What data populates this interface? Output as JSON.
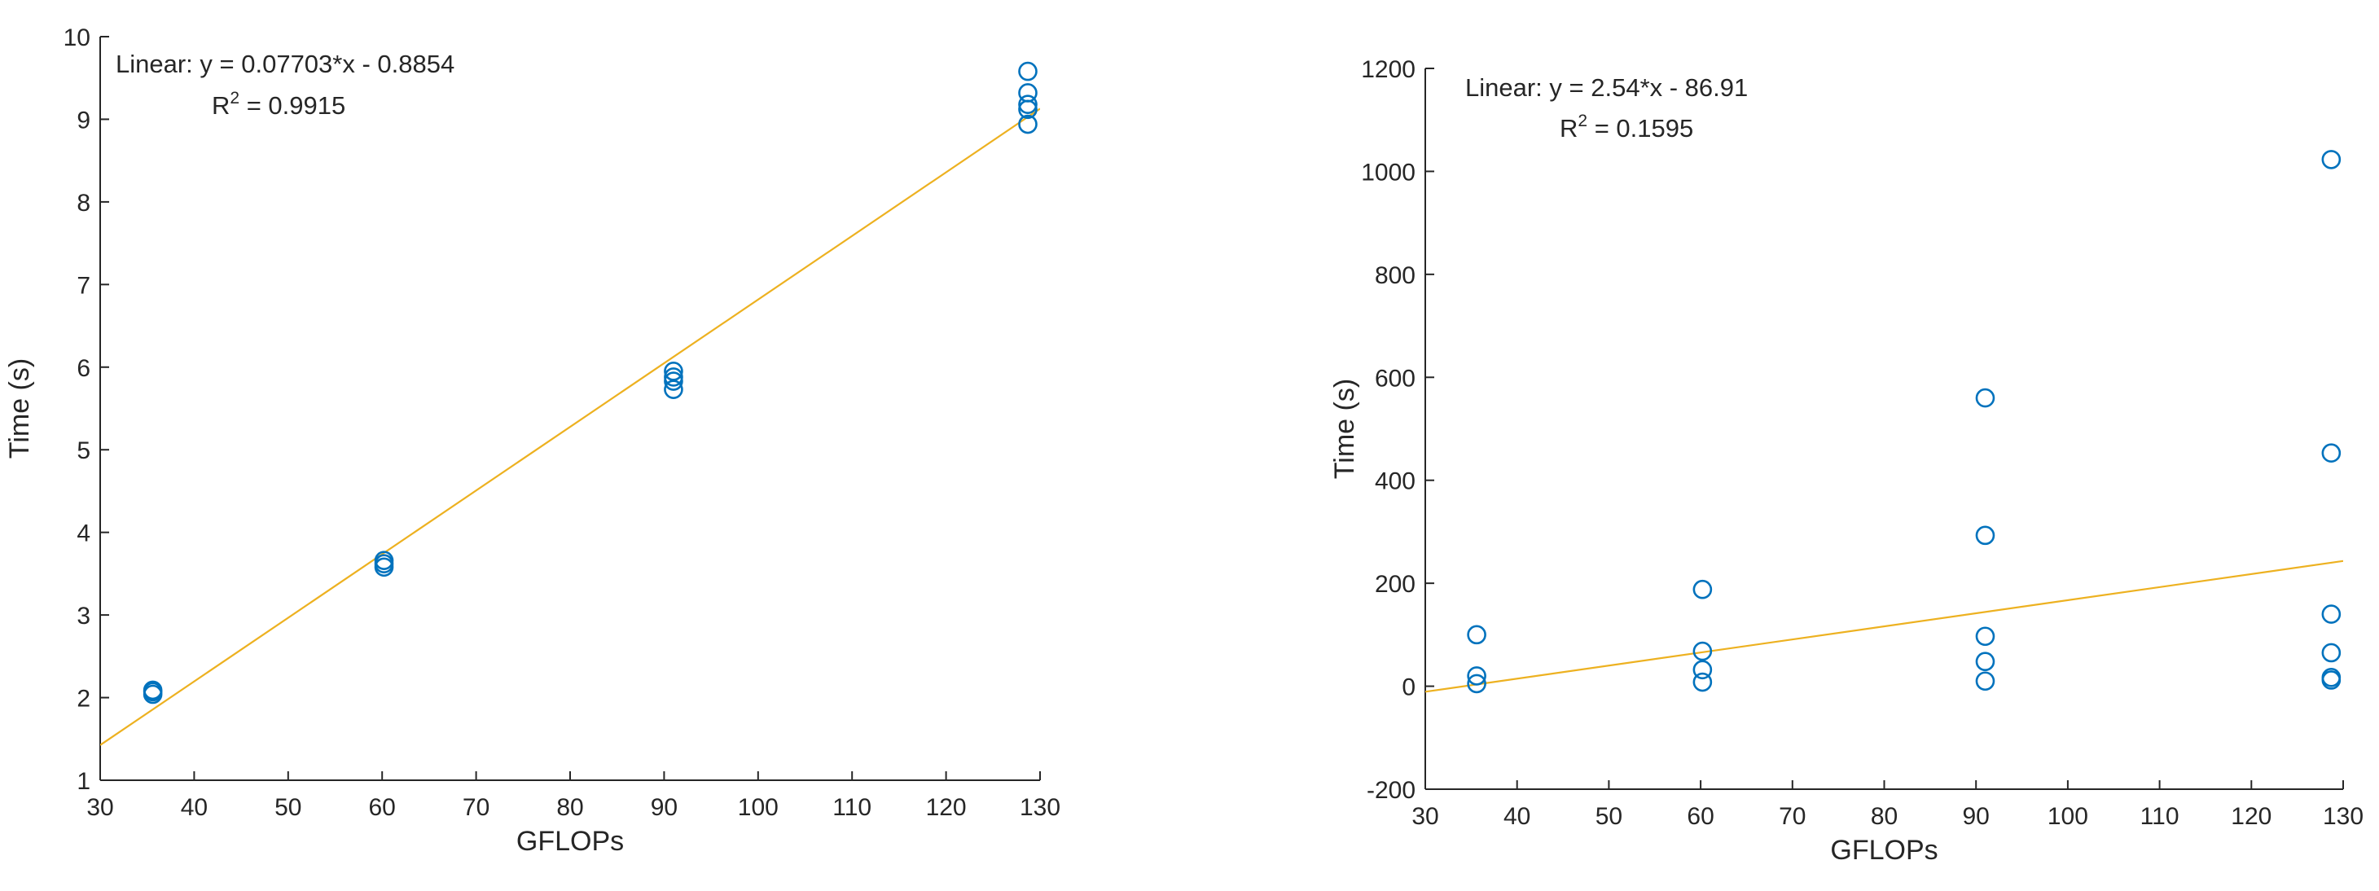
{
  "chart_data": [
    {
      "type": "scatter",
      "title": "",
      "xlabel": "GFLOPs",
      "ylabel": "Time (s)",
      "xlim": [
        30,
        130
      ],
      "ylim": [
        1,
        10
      ],
      "xticks": [
        30,
        40,
        50,
        60,
        70,
        80,
        90,
        100,
        110,
        120,
        130
      ],
      "yticks": [
        1,
        2,
        3,
        4,
        5,
        6,
        7,
        8,
        9,
        10
      ],
      "grid": false,
      "series": [
        {
          "marker": "open-circle",
          "color": "#0072BD",
          "points": [
            {
              "x": 35.6,
              "y": 2.04
            },
            {
              "x": 35.6,
              "y": 2.07
            },
            {
              "x": 35.6,
              "y": 2.09
            },
            {
              "x": 60.2,
              "y": 3.58
            },
            {
              "x": 60.2,
              "y": 3.62
            },
            {
              "x": 60.2,
              "y": 3.66
            },
            {
              "x": 91.0,
              "y": 5.73
            },
            {
              "x": 91.0,
              "y": 5.83
            },
            {
              "x": 91.0,
              "y": 5.88
            },
            {
              "x": 91.0,
              "y": 5.95
            },
            {
              "x": 128.7,
              "y": 8.94
            },
            {
              "x": 128.7,
              "y": 9.12
            },
            {
              "x": 128.7,
              "y": 9.18
            },
            {
              "x": 128.7,
              "y": 9.32
            },
            {
              "x": 128.7,
              "y": 9.58
            }
          ]
        }
      ],
      "fit": {
        "slope": 0.07703,
        "intercept": -0.8854,
        "color": "#EDB120"
      },
      "annotation": {
        "line1": "Linear:  y = 0.07703*x - 0.8854",
        "r2_base": "R",
        "r2_sup": "2",
        "r2_value": " = 0.9915"
      }
    },
    {
      "type": "scatter",
      "title": "",
      "xlabel": "GFLOPs",
      "ylabel": "Time (s)",
      "xlim": [
        30,
        130
      ],
      "ylim": [
        -200,
        1200
      ],
      "xticks": [
        30,
        40,
        50,
        60,
        70,
        80,
        90,
        100,
        110,
        120,
        130
      ],
      "yticks": [
        -200,
        0,
        200,
        400,
        600,
        800,
        1000,
        1200
      ],
      "grid": false,
      "series": [
        {
          "marker": "open-circle",
          "color": "#0072BD",
          "points": [
            {
              "x": 35.6,
              "y": 100
            },
            {
              "x": 35.6,
              "y": 20
            },
            {
              "x": 35.6,
              "y": 5
            },
            {
              "x": 60.2,
              "y": 188
            },
            {
              "x": 60.2,
              "y": 68
            },
            {
              "x": 60.2,
              "y": 32
            },
            {
              "x": 60.2,
              "y": 8
            },
            {
              "x": 91.0,
              "y": 560
            },
            {
              "x": 91.0,
              "y": 293
            },
            {
              "x": 91.0,
              "y": 97
            },
            {
              "x": 91.0,
              "y": 48
            },
            {
              "x": 91.0,
              "y": 10
            },
            {
              "x": 128.7,
              "y": 1023
            },
            {
              "x": 128.7,
              "y": 453
            },
            {
              "x": 128.7,
              "y": 140
            },
            {
              "x": 128.7,
              "y": 65
            },
            {
              "x": 128.7,
              "y": 17
            },
            {
              "x": 128.7,
              "y": 12
            }
          ]
        }
      ],
      "fit": {
        "slope": 2.54,
        "intercept": -86.91,
        "color": "#EDB120"
      },
      "annotation": {
        "line1": "Linear:  y = 2.54*x - 86.91",
        "r2_base": "R",
        "r2_sup": "2",
        "r2_value": " = 0.1595"
      }
    }
  ]
}
